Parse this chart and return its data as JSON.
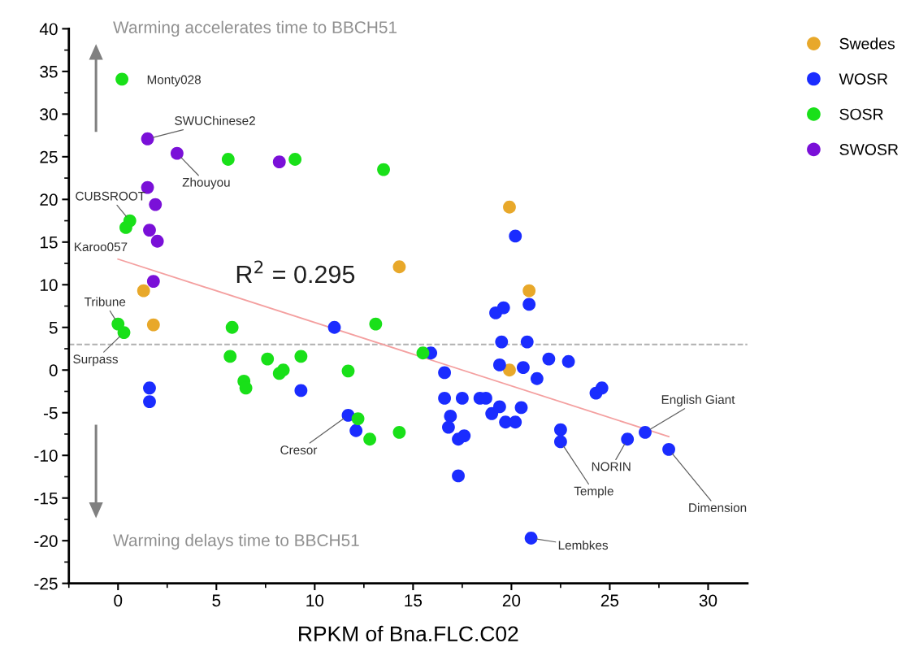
{
  "chart_data": {
    "type": "scatter",
    "xlabel": "RPKM of Bna.FLC.C02",
    "xlim": [
      -2.5,
      32
    ],
    "xticks": [
      0,
      5,
      10,
      15,
      20,
      25,
      30
    ],
    "ylim": [
      -25,
      40
    ],
    "yticks": [
      -25,
      -20,
      -15,
      -10,
      -5,
      0,
      5,
      10,
      15,
      20,
      25,
      30,
      35,
      40
    ],
    "grid": false,
    "legend": "right",
    "marker": "circle",
    "series": [
      {
        "name": "Swedes",
        "color": "#e8a82a",
        "x": [
          1.3,
          1.8,
          14.3,
          19.9,
          20.9,
          19.9
        ],
        "values": [
          9.3,
          5.3,
          12.1,
          19.1,
          9.3,
          0.0
        ]
      },
      {
        "name": "WOSR",
        "color": "#1a2cff",
        "x": [
          11.0,
          1.6,
          1.6,
          9.3,
          11.7,
          12.1,
          15.9,
          16.6,
          20.2,
          19.2,
          19.6,
          20.9,
          19.5,
          20.8,
          19.4,
          20.6,
          21.3,
          21.9,
          22.9,
          24.3,
          24.6,
          16.6,
          17.5,
          18.4,
          18.7,
          19.0,
          19.4,
          20.5,
          16.9,
          16.8,
          19.7,
          20.2,
          17.3,
          17.6,
          17.3,
          22.5,
          22.5,
          25.9,
          26.8,
          28.0,
          21.0
        ],
        "values": [
          5.0,
          -2.1,
          -3.7,
          -2.4,
          -5.3,
          -7.1,
          2.0,
          -0.3,
          15.7,
          6.7,
          7.3,
          7.7,
          3.3,
          3.3,
          0.6,
          0.3,
          -1.0,
          1.3,
          1.0,
          -2.7,
          -2.1,
          -3.3,
          -3.3,
          -3.3,
          -3.3,
          -5.1,
          -4.3,
          -4.4,
          -5.4,
          -6.7,
          -6.1,
          -6.1,
          -8.1,
          -7.7,
          -12.4,
          -7.0,
          -8.4,
          -8.1,
          -7.3,
          -9.3,
          -19.7
        ]
      },
      {
        "name": "SOSR",
        "color": "#19e019",
        "x": [
          0.2,
          5.6,
          9.0,
          13.5,
          0.6,
          0.4,
          0.0,
          0.3,
          5.8,
          13.1,
          5.7,
          7.6,
          9.3,
          8.2,
          8.4,
          6.4,
          6.5,
          11.7,
          12.2,
          12.8,
          14.3,
          15.5
        ],
        "values": [
          34.1,
          24.7,
          24.7,
          23.5,
          17.5,
          16.7,
          5.4,
          4.4,
          5.0,
          5.4,
          1.6,
          1.3,
          1.6,
          -0.4,
          0.0,
          -1.3,
          -2.1,
          -0.1,
          -5.7,
          -8.1,
          -7.3,
          2.0
        ]
      },
      {
        "name": "SWOSR",
        "color": "#7a10d8",
        "x": [
          1.5,
          3.0,
          8.2,
          1.5,
          1.9,
          1.6,
          2.0,
          1.8
        ],
        "values": [
          27.1,
          25.4,
          24.4,
          21.4,
          19.4,
          16.4,
          15.1,
          10.4
        ]
      },
      {
        "type": "line",
        "marker": "none",
        "color": "#f4a0a0",
        "x": [
          0.0,
          28.0
        ],
        "values": [
          13.0,
          -7.8
        ]
      }
    ],
    "ref_lines": [
      {
        "axis": "y",
        "value": 3,
        "color": "#b0b0b0",
        "line_style": "dashed"
      }
    ],
    "annotations": [
      "Warming accelerates time to BBCH51",
      "Warming delays time to BBCH51",
      "R$^{2}$ = 0.295",
      {
        "text": "Monty028",
        "x": 0.2,
        "y": 34.1
      },
      {
        "text": "SWUChinese2",
        "x": 1.5,
        "y": 27.1
      },
      {
        "text": "Zhouyou",
        "x": 3.0,
        "y": 25.4
      },
      {
        "text": "CUBSROOT",
        "x": 0.6,
        "y": 17.5
      },
      {
        "text": "Karoo057",
        "x": 0.4,
        "y": 16.7
      },
      {
        "text": "Tribune",
        "x": 0.0,
        "y": 5.4
      },
      {
        "text": "Surpass",
        "x": 0.3,
        "y": 4.4
      },
      {
        "text": "Cresor",
        "x": 11.7,
        "y": -5.3
      },
      {
        "text": "Temple",
        "x": 22.5,
        "y": -8.4
      },
      {
        "text": "NORIN",
        "x": 25.9,
        "y": -8.1
      },
      {
        "text": "English Giant",
        "x": 26.8,
        "y": -7.3
      },
      {
        "text": "Dimension",
        "x": 28.0,
        "y": -9.3
      },
      {
        "text": "Lembkes",
        "x": 21.0,
        "y": -19.7
      }
    ]
  }
}
